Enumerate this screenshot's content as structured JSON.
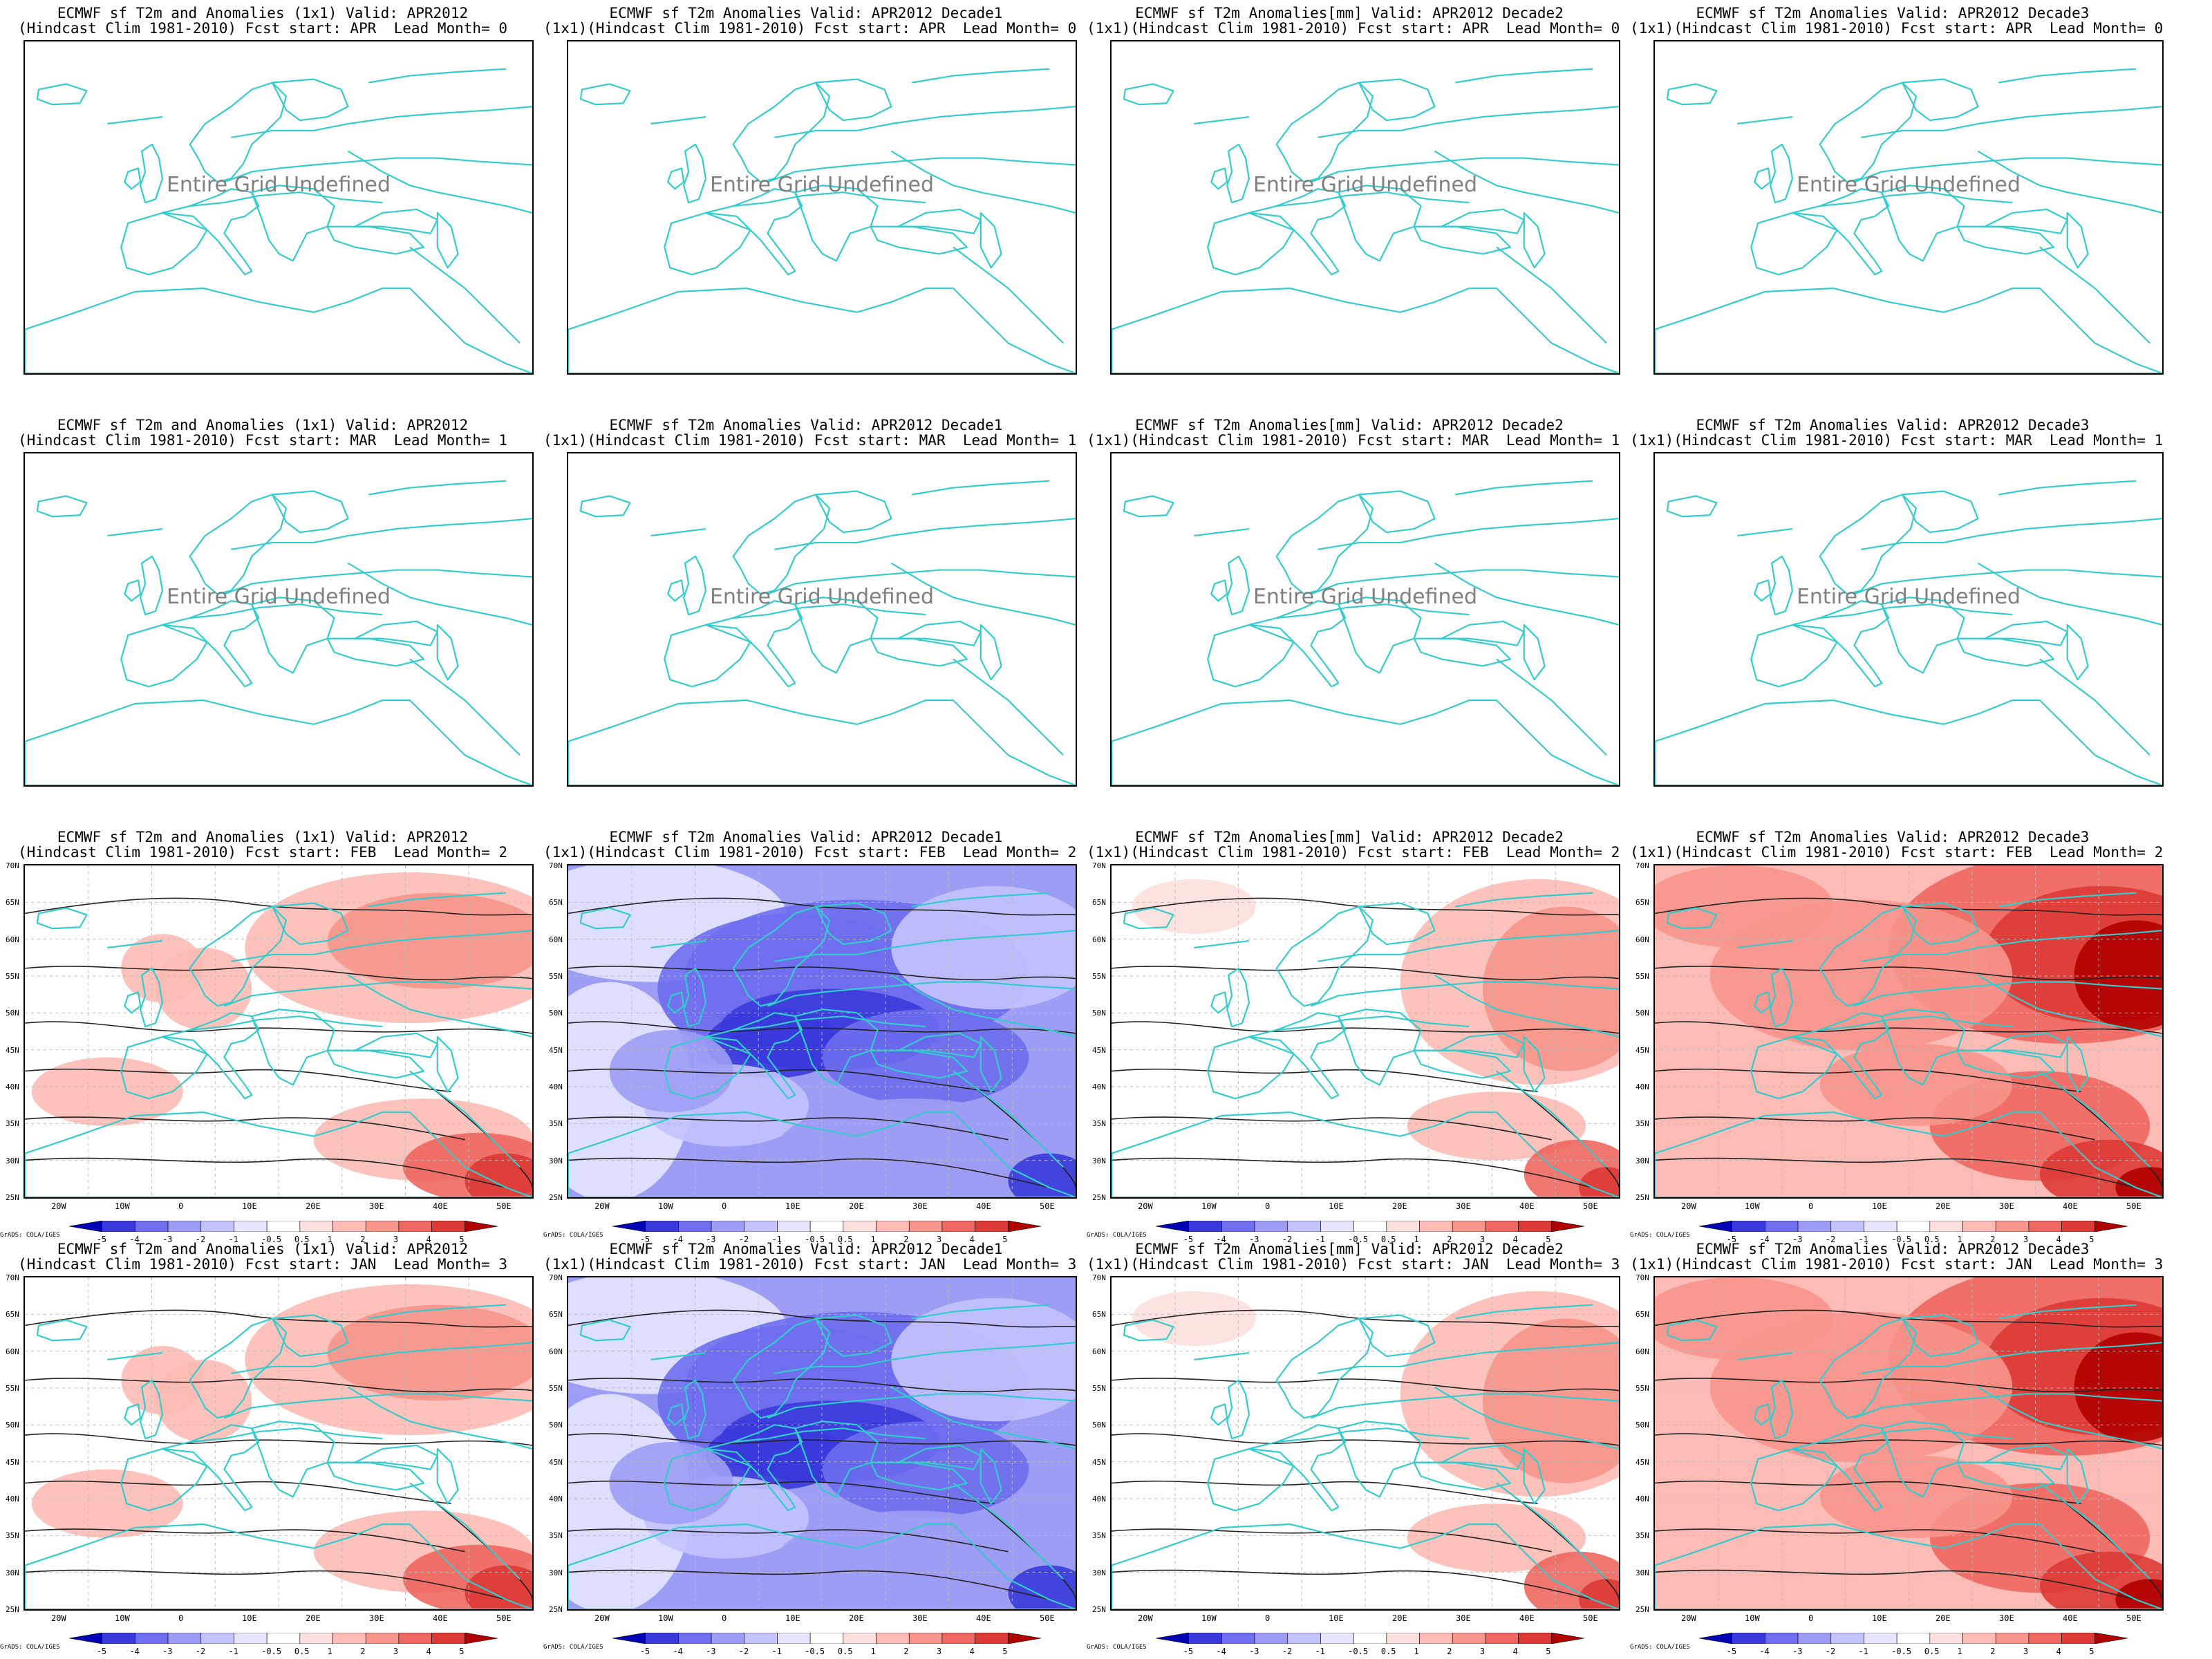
{
  "colors": {
    "coast": "#33cccc",
    "warm": [
      "#fde0dd",
      "#fcbbb4",
      "#f7958c",
      "#ee6760",
      "#dd3a35",
      "#b00000"
    ],
    "cold": [
      "#e5e5ff",
      "#c3c3ff",
      "#9d9df5",
      "#6e6eee",
      "#3a3adc",
      "#0000b4"
    ]
  },
  "undefined_text": "Entire Grid Undefined",
  "credit": "GrADS: COLA/IGES",
  "x_ticks": [
    "20W",
    "10W",
    "0",
    "10E",
    "20E",
    "30E",
    "40E",
    "50E"
  ],
  "y_ticks": [
    "70N",
    "65N",
    "60N",
    "55N",
    "50N",
    "45N",
    "40N",
    "35N",
    "30N",
    "25N"
  ],
  "colorbar_labels": [
    "-5",
    "-4",
    "-3",
    "-2",
    "-1",
    "-0.5",
    "0.5",
    "1",
    "2",
    "3",
    "4",
    "5"
  ],
  "panels": [
    {
      "title1": "ECMWF sf T2m and Anomalies (1x1) Valid: APR2012",
      "title2": "(Hindcast Clim 1981-2010) Fcst start: APR  Lead Month= 0",
      "state": "undefined"
    },
    {
      "title1": "ECMWF sf T2m Anomalies Valid: APR2012 Decade1",
      "title2": "(1x1)(Hindcast Clim 1981-2010) Fcst start: APR  Lead Month= 0",
      "state": "undefined"
    },
    {
      "title1": "ECMWF sf T2m Anomalies[mm] Valid: APR2012 Decade2",
      "title2": "(1x1)(Hindcast Clim 1981-2010) Fcst start: APR  Lead Month= 0",
      "state": "undefined"
    },
    {
      "title1": "ECMWF sf T2m Anomalies Valid: APR2012 Decade3",
      "title2": "(1x1)(Hindcast Clim 1981-2010) Fcst start: APR  Lead Month= 0",
      "state": "undefined"
    },
    {
      "title1": "ECMWF sf T2m and Anomalies (1x1) Valid: APR2012",
      "title2": "(Hindcast Clim 1981-2010) Fcst start: MAR  Lead Month= 1",
      "state": "undefined"
    },
    {
      "title1": "ECMWF sf T2m Anomalies Valid: APR2012 Decade1",
      "title2": "(1x1)(Hindcast Clim 1981-2010) Fcst start: MAR  Lead Month= 1",
      "state": "undefined"
    },
    {
      "title1": "ECMWF sf T2m Anomalies[mm] Valid: APR2012 Decade2",
      "title2": "(1x1)(Hindcast Clim 1981-2010) Fcst start: MAR  Lead Month= 1",
      "state": "undefined"
    },
    {
      "title1": "ECMWF sf T2m Anomalies Valid: APR2012 Decade3",
      "title2": "(1x1)(Hindcast Clim 1981-2010) Fcst start: MAR  Lead Month= 1",
      "state": "undefined"
    },
    {
      "title1": "ECMWF sf T2m and Anomalies (1x1) Valid: APR2012",
      "title2": "(Hindcast Clim 1981-2010) Fcst start: FEB  Lead Month= 2",
      "state": "filled",
      "tone": "warm-east"
    },
    {
      "title1": "ECMWF sf T2m Anomalies Valid: APR2012 Decade1",
      "title2": "(1x1)(Hindcast Clim 1981-2010) Fcst start: FEB  Lead Month= 2",
      "state": "filled",
      "tone": "cold"
    },
    {
      "title1": "ECMWF sf T2m Anomalies[mm] Valid: APR2012 Decade2",
      "title2": "(1x1)(Hindcast Clim 1981-2010) Fcst start: FEB  Lead Month= 2",
      "state": "filled",
      "tone": "mild-east"
    },
    {
      "title1": "ECMWF sf T2m Anomalies Valid: APR2012 Decade3",
      "title2": "(1x1)(Hindcast Clim 1981-2010) Fcst start: FEB  Lead Month= 2",
      "state": "filled",
      "tone": "hot"
    },
    {
      "title1": "ECMWF sf T2m and Anomalies (1x1) Valid: APR2012",
      "title2": "(Hindcast Clim 1981-2010) Fcst start: JAN  Lead Month= 3",
      "state": "filled",
      "tone": "warm-east"
    },
    {
      "title1": "ECMWF sf T2m Anomalies Valid: APR2012 Decade1",
      "title2": "(1x1)(Hindcast Clim 1981-2010) Fcst start: JAN  Lead Month= 3",
      "state": "filled",
      "tone": "cold"
    },
    {
      "title1": "ECMWF sf T2m Anomalies[mm] Valid: APR2012 Decade2",
      "title2": "(1x1)(Hindcast Clim 1981-2010) Fcst start: JAN  Lead Month= 3",
      "state": "filled",
      "tone": "mild-east"
    },
    {
      "title1": "ECMWF sf T2m Anomalies Valid: APR2012 Decade3",
      "title2": "(1x1)(Hindcast Clim 1981-2010) Fcst start: JAN  Lead Month= 3",
      "state": "filled",
      "tone": "hot"
    }
  ]
}
